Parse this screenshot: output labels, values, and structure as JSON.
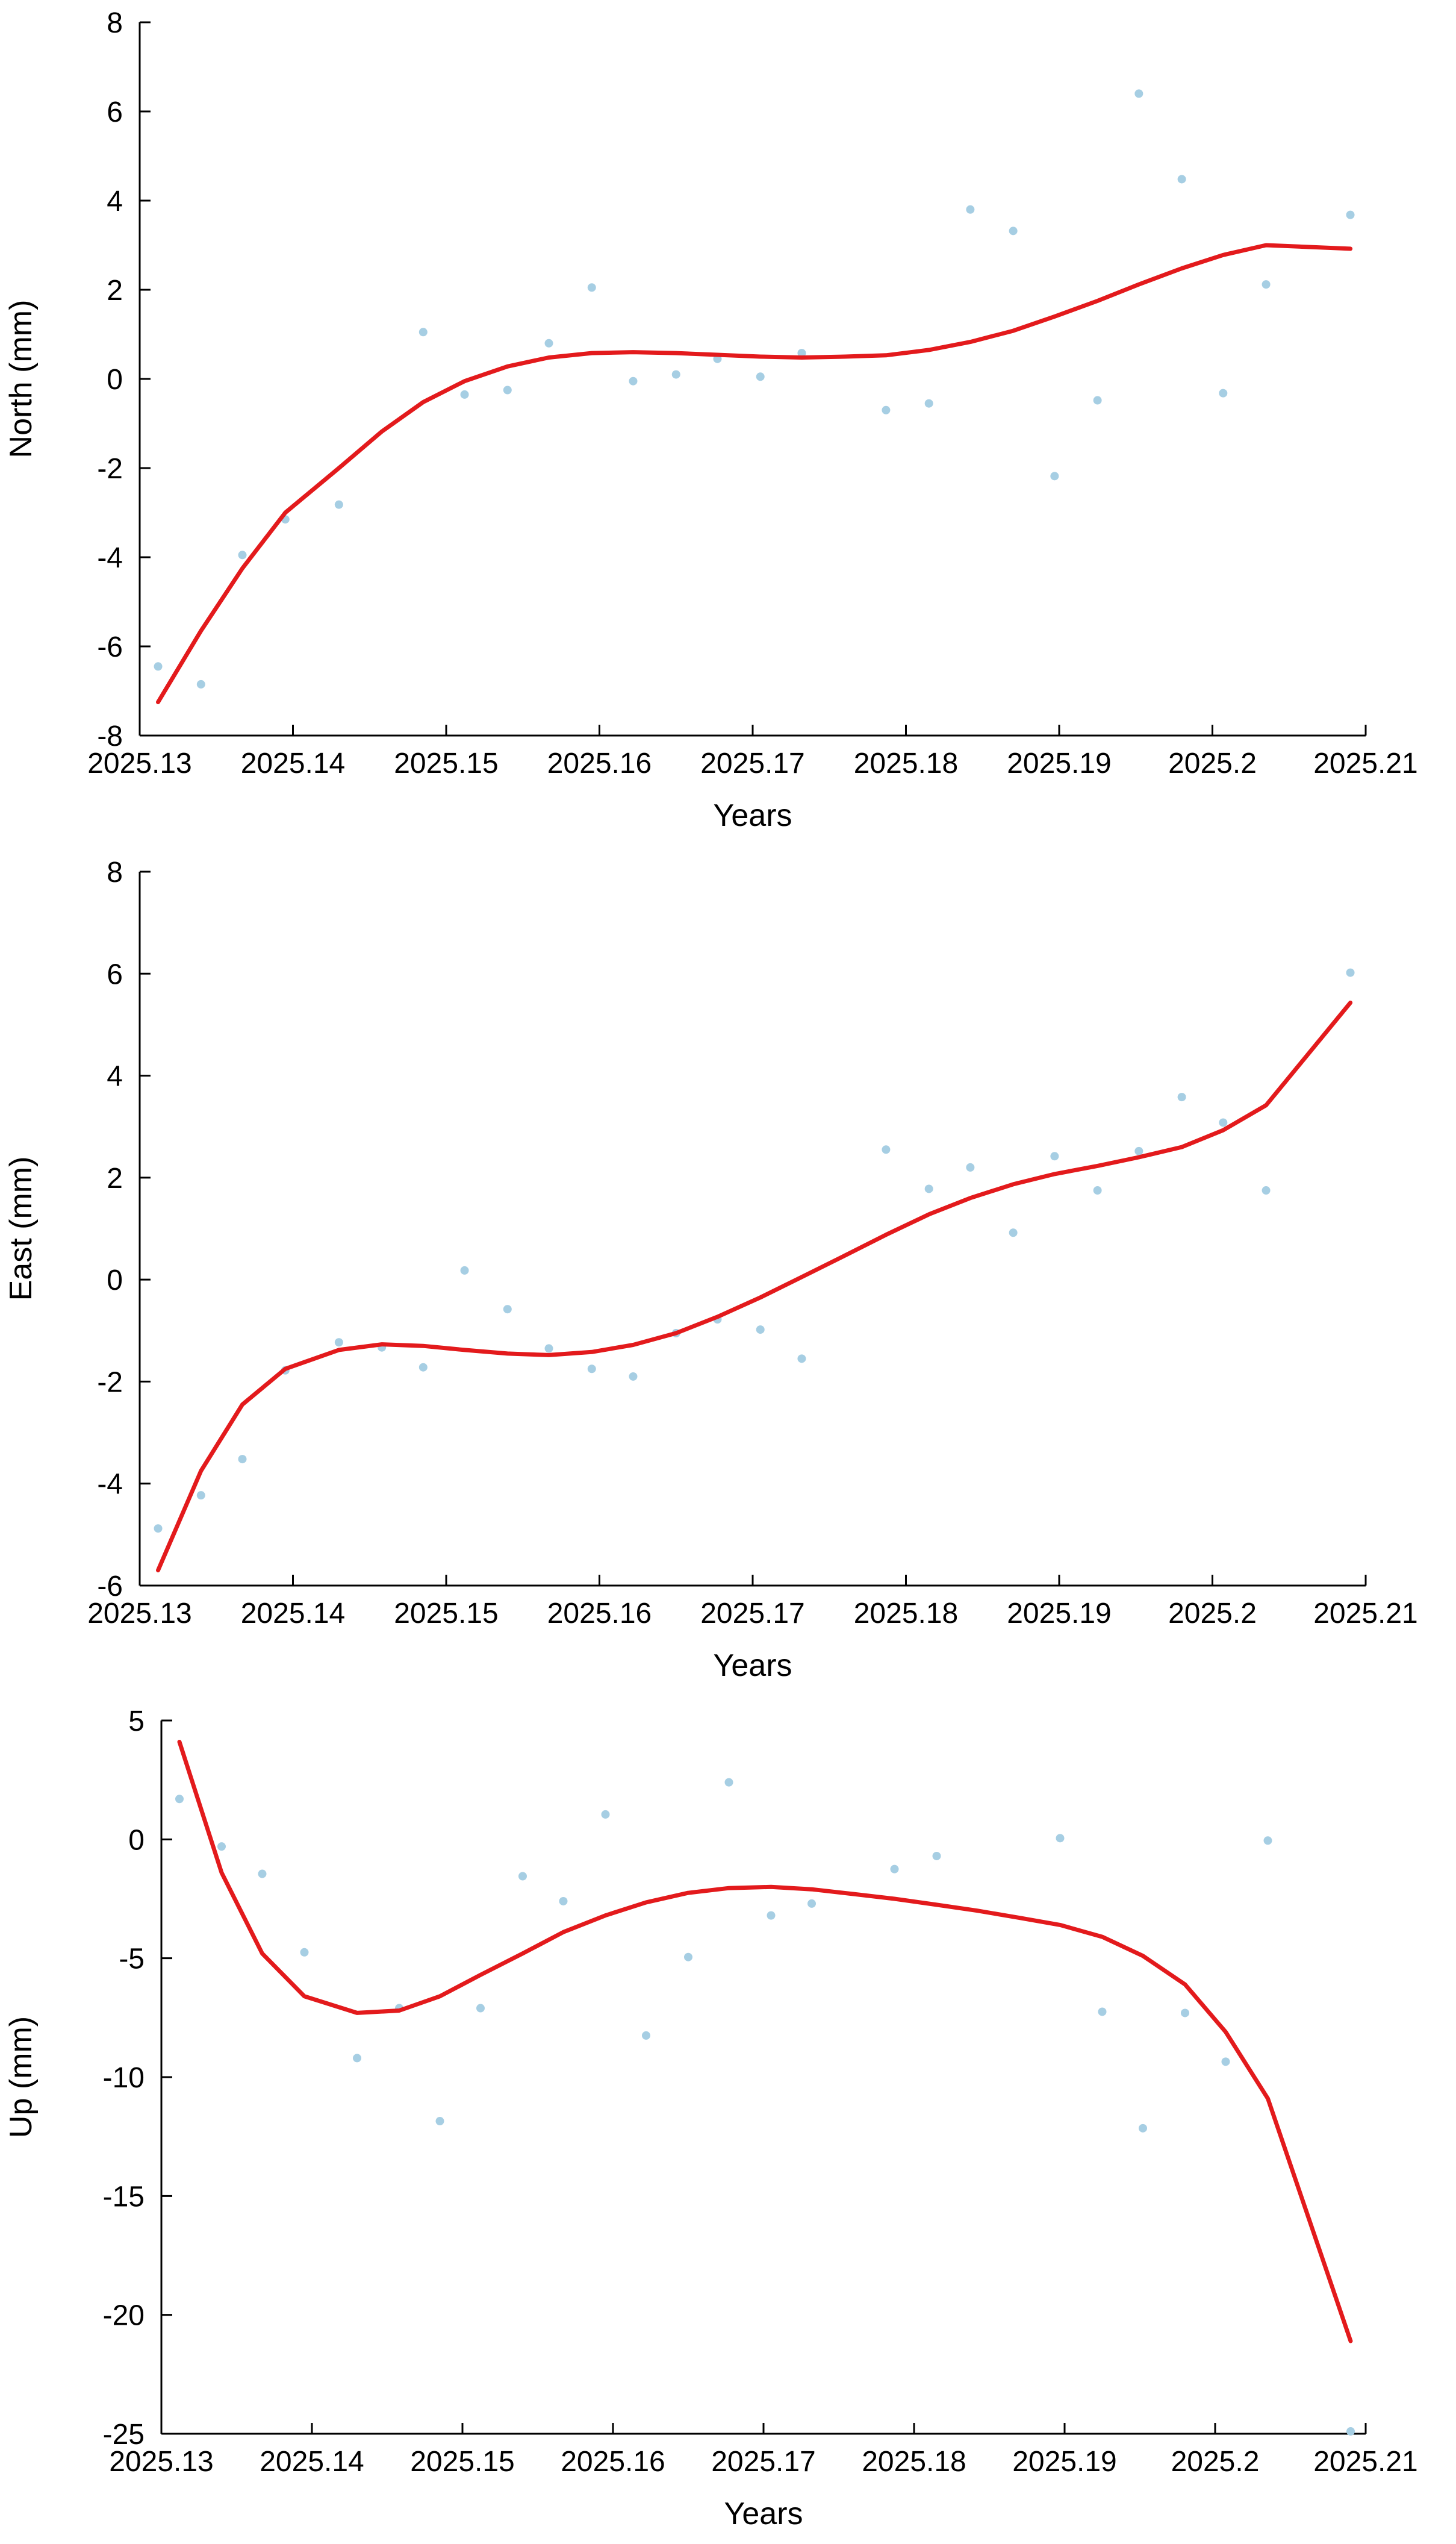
{
  "chart_data": [
    {
      "type": "scatter",
      "xlabel": "Years",
      "ylabel": "North (mm)",
      "xlim": [
        2025.13,
        2025.21
      ],
      "ylim": [
        -8,
        8
      ],
      "x_ticks": [
        2025.13,
        2025.14,
        2025.15,
        2025.16,
        2025.17,
        2025.18,
        2025.19,
        2025.2,
        2025.21
      ],
      "x_tick_labels": [
        "2025.13",
        "2025.14",
        "2025.15",
        "2025.16",
        "2025.17",
        "2025.18",
        "2025.19",
        "2025.2",
        "2025.21"
      ],
      "y_ticks": [
        -8,
        -6,
        -4,
        -2,
        0,
        2,
        4,
        6,
        8
      ],
      "y_tick_labels": [
        "-8",
        "-6",
        "-4",
        "-2",
        "0",
        "2",
        "4",
        "6",
        "8"
      ],
      "grid": false,
      "series": [
        {
          "kind": "points",
          "color": "#a6cee3",
          "points": [
            [
              2025.1312,
              -6.45
            ],
            [
              2025.134,
              -6.85
            ],
            [
              2025.1367,
              -3.95
            ],
            [
              2025.1395,
              -3.15
            ],
            [
              2025.143,
              -2.82
            ],
            [
              2025.1485,
              1.05
            ],
            [
              2025.1512,
              -0.35
            ],
            [
              2025.154,
              -0.25
            ],
            [
              2025.1567,
              0.8
            ],
            [
              2025.1595,
              2.05
            ],
            [
              2025.1622,
              -0.05
            ],
            [
              2025.165,
              0.1
            ],
            [
              2025.1677,
              0.45
            ],
            [
              2025.1705,
              0.05
            ],
            [
              2025.1732,
              0.58
            ],
            [
              2025.1787,
              -0.7
            ],
            [
              2025.1815,
              -0.55
            ],
            [
              2025.1842,
              3.8
            ],
            [
              2025.187,
              3.32
            ],
            [
              2025.1897,
              -2.18
            ],
            [
              2025.1925,
              -0.48
            ],
            [
              2025.1952,
              6.4
            ],
            [
              2025.198,
              4.48
            ],
            [
              2025.2007,
              -0.32
            ],
            [
              2025.2035,
              2.12
            ],
            [
              2025.209,
              3.68
            ]
          ]
        },
        {
          "kind": "line",
          "color": "#e31a1c",
          "points": [
            [
              2025.1312,
              -7.25
            ],
            [
              2025.134,
              -5.65
            ],
            [
              2025.1367,
              -4.25
            ],
            [
              2025.1395,
              -3.0
            ],
            [
              2025.143,
              -2.0
            ],
            [
              2025.1458,
              -1.18
            ],
            [
              2025.1485,
              -0.52
            ],
            [
              2025.1512,
              -0.05
            ],
            [
              2025.154,
              0.28
            ],
            [
              2025.1567,
              0.48
            ],
            [
              2025.1595,
              0.58
            ],
            [
              2025.1622,
              0.6
            ],
            [
              2025.165,
              0.58
            ],
            [
              2025.1677,
              0.54
            ],
            [
              2025.1705,
              0.5
            ],
            [
              2025.1732,
              0.48
            ],
            [
              2025.176,
              0.5
            ],
            [
              2025.1787,
              0.53
            ],
            [
              2025.1815,
              0.65
            ],
            [
              2025.1842,
              0.83
            ],
            [
              2025.187,
              1.08
            ],
            [
              2025.1897,
              1.4
            ],
            [
              2025.1925,
              1.75
            ],
            [
              2025.1952,
              2.12
            ],
            [
              2025.198,
              2.48
            ],
            [
              2025.2007,
              2.78
            ],
            [
              2025.2035,
              3.0
            ],
            [
              2025.209,
              2.92
            ]
          ]
        }
      ]
    },
    {
      "type": "scatter",
      "xlabel": "Years",
      "ylabel": "East (mm)",
      "xlim": [
        2025.13,
        2025.21
      ],
      "ylim": [
        -6,
        8
      ],
      "x_ticks": [
        2025.13,
        2025.14,
        2025.15,
        2025.16,
        2025.17,
        2025.18,
        2025.19,
        2025.2,
        2025.21
      ],
      "x_tick_labels": [
        "2025.13",
        "2025.14",
        "2025.15",
        "2025.16",
        "2025.17",
        "2025.18",
        "2025.19",
        "2025.2",
        "2025.21"
      ],
      "y_ticks": [
        -6,
        -4,
        -2,
        0,
        2,
        4,
        6,
        8
      ],
      "y_tick_labels": [
        "-6",
        "-4",
        "-2",
        "0",
        "2",
        "4",
        "6",
        "8"
      ],
      "grid": false,
      "series": [
        {
          "kind": "points",
          "color": "#a6cee3",
          "points": [
            [
              2025.1312,
              -4.88
            ],
            [
              2025.134,
              -4.23
            ],
            [
              2025.1367,
              -3.52
            ],
            [
              2025.1395,
              -1.78
            ],
            [
              2025.143,
              -1.23
            ],
            [
              2025.1458,
              -1.33
            ],
            [
              2025.1485,
              -1.72
            ],
            [
              2025.1512,
              0.18
            ],
            [
              2025.154,
              -0.58
            ],
            [
              2025.1567,
              -1.35
            ],
            [
              2025.1595,
              -1.75
            ],
            [
              2025.1622,
              -1.9
            ],
            [
              2025.165,
              -1.05
            ],
            [
              2025.1677,
              -0.78
            ],
            [
              2025.1705,
              -0.98
            ],
            [
              2025.1732,
              -1.55
            ],
            [
              2025.1787,
              2.55
            ],
            [
              2025.1815,
              1.78
            ],
            [
              2025.1842,
              2.2
            ],
            [
              2025.187,
              0.92
            ],
            [
              2025.1897,
              2.42
            ],
            [
              2025.1925,
              1.75
            ],
            [
              2025.1952,
              2.52
            ],
            [
              2025.198,
              3.58
            ],
            [
              2025.2007,
              3.08
            ],
            [
              2025.2035,
              1.75
            ],
            [
              2025.209,
              6.02
            ]
          ]
        },
        {
          "kind": "line",
          "color": "#e31a1c",
          "points": [
            [
              2025.1312,
              -5.7
            ],
            [
              2025.134,
              -3.75
            ],
            [
              2025.1367,
              -2.45
            ],
            [
              2025.1395,
              -1.75
            ],
            [
              2025.143,
              -1.38
            ],
            [
              2025.1458,
              -1.27
            ],
            [
              2025.1485,
              -1.3
            ],
            [
              2025.1512,
              -1.38
            ],
            [
              2025.154,
              -1.45
            ],
            [
              2025.1567,
              -1.48
            ],
            [
              2025.1595,
              -1.42
            ],
            [
              2025.1622,
              -1.28
            ],
            [
              2025.165,
              -1.05
            ],
            [
              2025.1677,
              -0.73
            ],
            [
              2025.1705,
              -0.35
            ],
            [
              2025.1732,
              0.05
            ],
            [
              2025.176,
              0.47
            ],
            [
              2025.1787,
              0.88
            ],
            [
              2025.1815,
              1.28
            ],
            [
              2025.1842,
              1.6
            ],
            [
              2025.187,
              1.87
            ],
            [
              2025.1897,
              2.07
            ],
            [
              2025.1925,
              2.23
            ],
            [
              2025.1952,
              2.4
            ],
            [
              2025.198,
              2.6
            ],
            [
              2025.2007,
              2.93
            ],
            [
              2025.2035,
              3.42
            ],
            [
              2025.209,
              5.43
            ]
          ]
        }
      ]
    },
    {
      "type": "scatter",
      "xlabel": "Years",
      "ylabel": "Up (mm)",
      "xlim": [
        2025.13,
        2025.21
      ],
      "ylim": [
        -25,
        5
      ],
      "x_ticks": [
        2025.13,
        2025.14,
        2025.15,
        2025.16,
        2025.17,
        2025.18,
        2025.19,
        2025.2,
        2025.21
      ],
      "x_tick_labels": [
        "2025.13",
        "2025.14",
        "2025.15",
        "2025.16",
        "2025.17",
        "2025.18",
        "2025.19",
        "2025.2",
        "2025.21"
      ],
      "y_ticks": [
        -25,
        -20,
        -15,
        -10,
        -5,
        0,
        5
      ],
      "y_tick_labels": [
        "-25",
        "-20",
        "-15",
        "-10",
        "-5",
        "0",
        "5"
      ],
      "grid": false,
      "series": [
        {
          "kind": "points",
          "color": "#a6cee3",
          "points": [
            [
              2025.1312,
              1.7
            ],
            [
              2025.134,
              -0.3
            ],
            [
              2025.1367,
              -1.45
            ],
            [
              2025.1395,
              -4.75
            ],
            [
              2025.143,
              -9.2
            ],
            [
              2025.1458,
              -7.1
            ],
            [
              2025.1485,
              -11.85
            ],
            [
              2025.1512,
              -7.1
            ],
            [
              2025.154,
              -1.55
            ],
            [
              2025.1567,
              -2.6
            ],
            [
              2025.1595,
              1.05
            ],
            [
              2025.1622,
              -8.25
            ],
            [
              2025.165,
              -4.95
            ],
            [
              2025.1677,
              2.4
            ],
            [
              2025.1705,
              -3.2
            ],
            [
              2025.1732,
              -2.7
            ],
            [
              2025.1787,
              -1.25
            ],
            [
              2025.1815,
              -0.7
            ],
            [
              2025.1897,
              0.05
            ],
            [
              2025.1925,
              -7.25
            ],
            [
              2025.1952,
              -12.15
            ],
            [
              2025.198,
              -7.3
            ],
            [
              2025.2007,
              -9.35
            ],
            [
              2025.2035,
              -0.05
            ],
            [
              2025.209,
              -24.9
            ]
          ]
        },
        {
          "kind": "line",
          "color": "#e31a1c",
          "points": [
            [
              2025.1312,
              4.1
            ],
            [
              2025.134,
              -1.4
            ],
            [
              2025.1367,
              -4.8
            ],
            [
              2025.1395,
              -6.6
            ],
            [
              2025.143,
              -7.3
            ],
            [
              2025.1458,
              -7.2
            ],
            [
              2025.1485,
              -6.6
            ],
            [
              2025.1512,
              -5.7
            ],
            [
              2025.154,
              -4.8
            ],
            [
              2025.1567,
              -3.9
            ],
            [
              2025.1595,
              -3.2
            ],
            [
              2025.1622,
              -2.65
            ],
            [
              2025.165,
              -2.25
            ],
            [
              2025.1677,
              -2.05
            ],
            [
              2025.1705,
              -2.0
            ],
            [
              2025.1732,
              -2.1
            ],
            [
              2025.176,
              -2.3
            ],
            [
              2025.1787,
              -2.5
            ],
            [
              2025.1815,
              -2.75
            ],
            [
              2025.1842,
              -3.0
            ],
            [
              2025.187,
              -3.3
            ],
            [
              2025.1897,
              -3.6
            ],
            [
              2025.1925,
              -4.1
            ],
            [
              2025.1952,
              -4.9
            ],
            [
              2025.198,
              -6.1
            ],
            [
              2025.2007,
              -8.1
            ],
            [
              2025.2035,
              -10.9
            ],
            [
              2025.209,
              -21.1
            ]
          ]
        }
      ]
    }
  ]
}
